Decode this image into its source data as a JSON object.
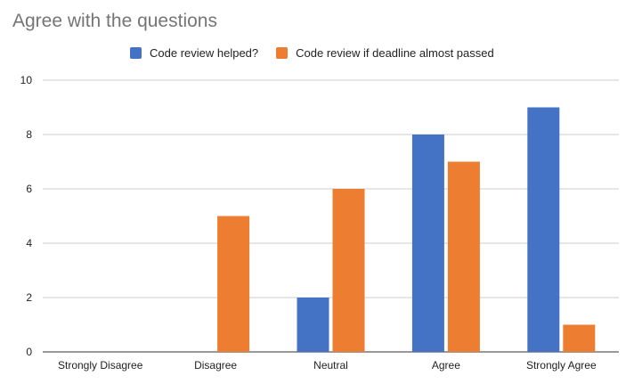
{
  "chart_data": {
    "type": "bar",
    "title": "Agree with the questions",
    "categories": [
      "Strongly Disagree",
      "Disagree",
      "Neutral",
      "Agree",
      "Strongly Agree"
    ],
    "series": [
      {
        "name": "Code review helped?",
        "values": [
          0,
          0,
          2,
          8,
          9
        ],
        "color": "#4472C4"
      },
      {
        "name": "Code review if deadline almost passed",
        "values": [
          0,
          5,
          6,
          7,
          1
        ],
        "color": "#ED7D31"
      }
    ],
    "xlabel": "",
    "ylabel": "",
    "ylim": [
      0,
      10
    ],
    "yticks": [
      0,
      2,
      4,
      6,
      8,
      10
    ],
    "grid": true,
    "legend_position": "top-center"
  }
}
